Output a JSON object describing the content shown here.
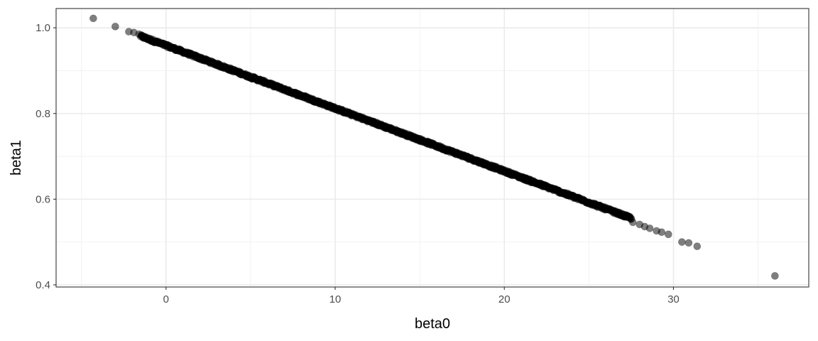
{
  "chart_data": {
    "type": "scatter",
    "title": "",
    "xlabel": "beta0",
    "ylabel": "beta1",
    "xlim": [
      -6.5,
      38
    ],
    "ylim": [
      0.395,
      1.045
    ],
    "x_ticks": [
      0,
      10,
      20,
      30
    ],
    "x_tick_labels": [
      "0",
      "10",
      "20",
      "30"
    ],
    "x_minor_ticks": [
      -5,
      5,
      15,
      25,
      35
    ],
    "y_ticks": [
      0.4,
      0.6,
      0.8,
      1.0
    ],
    "y_tick_labels": [
      "0.4",
      "0.6",
      "0.8",
      "1.0"
    ],
    "y_minor_ticks": [
      0.5,
      0.7,
      0.9
    ],
    "grid": true,
    "legend": "none",
    "point_color": "#000000",
    "point_opacity": 0.5,
    "relationship": "beta1 ≈ 0.9586 − 0.01466 × beta0",
    "x_range_dense": [
      -1.5,
      27.5
    ],
    "outliers": [
      {
        "x": -4.3,
        "y": 1.022
      },
      {
        "x": -3.0,
        "y": 1.003
      },
      {
        "x": -2.2,
        "y": 0.991
      },
      {
        "x": -1.9,
        "y": 0.989
      },
      {
        "x": -1.6,
        "y": 0.985
      },
      {
        "x": 27.6,
        "y": 0.546
      },
      {
        "x": 28.0,
        "y": 0.541
      },
      {
        "x": 28.3,
        "y": 0.536
      },
      {
        "x": 28.6,
        "y": 0.532
      },
      {
        "x": 29.0,
        "y": 0.526
      },
      {
        "x": 29.3,
        "y": 0.523
      },
      {
        "x": 29.7,
        "y": 0.518
      },
      {
        "x": 30.5,
        "y": 0.5
      },
      {
        "x": 30.9,
        "y": 0.498
      },
      {
        "x": 31.4,
        "y": 0.49
      },
      {
        "x": 36.0,
        "y": 0.421
      }
    ]
  },
  "colors": {
    "background": "#ffffff",
    "grid_major": "#ebebeb",
    "grid_minor": "#f2f2f2",
    "panel_border": "#333333",
    "tick_text": "#4d4d4d",
    "axis_title": "#000000"
  }
}
